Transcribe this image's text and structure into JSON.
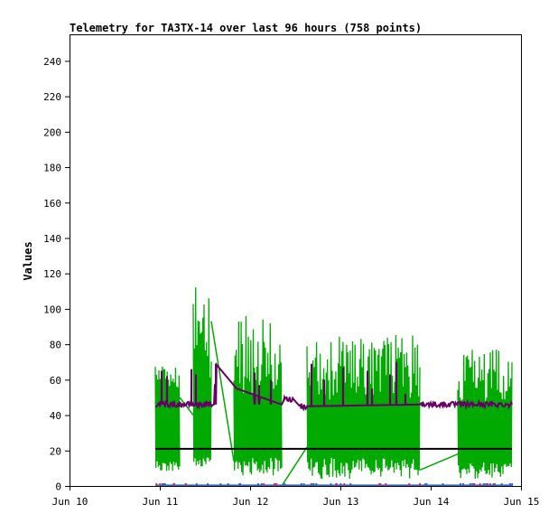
{
  "chart_data": {
    "type": "line",
    "title": "Telemetry for TA3TX-14 over last 96 hours (758 points)",
    "xlabel": "",
    "ylabel": "Values",
    "x_tick_labels": [
      "Jun 10",
      "Jun 11",
      "Jun 12",
      "Jun 13",
      "Jun 14",
      "Jun 15"
    ],
    "xlim": [
      "Jun 10",
      "Jun 15"
    ],
    "y_ticks": [
      0,
      20,
      40,
      60,
      80,
      100,
      120,
      140,
      160,
      180,
      200,
      220,
      240
    ],
    "ylim": [
      0,
      255
    ],
    "grid": false,
    "legend": "none",
    "series": [
      {
        "color": "#00aa00",
        "segments": [
          {
            "start_day": 10.95,
            "end_day": 11.22,
            "low": [
              8,
              14
            ],
            "high": [
              55,
              68
            ]
          },
          {
            "start_day": 11.37,
            "end_day": 11.57,
            "low": [
              10,
              16
            ],
            "high": [
              60,
              113
            ]
          },
          {
            "start_day": 11.82,
            "end_day": 12.35,
            "low": [
              6,
              16
            ],
            "high": [
              50,
              96
            ]
          },
          {
            "start_day": 12.63,
            "end_day": 13.88,
            "low": [
              4,
              16
            ],
            "high": [
              48,
              86
            ]
          },
          {
            "start_day": 14.3,
            "end_day": 14.9,
            "low": [
              4,
              14
            ],
            "high": [
              45,
              77
            ]
          }
        ],
        "gap_lines": [
          [
            [
              11.22,
              50
            ],
            [
              11.37,
              40
            ]
          ],
          [
            [
              11.57,
              93
            ],
            [
              11.82,
              14
            ]
          ],
          [
            [
              12.35,
              0
            ],
            [
              12.63,
              22
            ]
          ],
          [
            [
              13.88,
              9
            ],
            [
              14.3,
              18
            ]
          ]
        ]
      },
      {
        "color": "#660066",
        "baseline": 46,
        "spikes": [
          [
            11.02,
            65
          ],
          [
            11.08,
            62
          ],
          [
            11.35,
            66
          ],
          [
            11.4,
            63
          ],
          [
            11.62,
            69
          ],
          [
            12.05,
            64
          ],
          [
            12.1,
            57
          ],
          [
            12.23,
            60
          ],
          [
            12.68,
            69
          ],
          [
            12.82,
            60
          ],
          [
            13.03,
            67
          ],
          [
            13.3,
            65
          ],
          [
            13.35,
            55
          ],
          [
            13.55,
            63
          ],
          [
            13.62,
            70
          ],
          [
            13.72,
            52
          ]
        ],
        "path": [
          [
            10.95,
            46
          ],
          [
            11.6,
            46
          ],
          [
            11.62,
            69
          ],
          [
            11.85,
            55
          ],
          [
            12.35,
            46
          ],
          [
            12.38,
            49
          ],
          [
            12.48,
            49
          ],
          [
            12.55,
            45
          ],
          [
            12.63,
            45
          ],
          [
            13.9,
            46
          ],
          [
            14.3,
            46
          ],
          [
            14.9,
            46
          ]
        ]
      },
      {
        "color": "#000000",
        "values": [
          [
            10.95,
            21
          ],
          [
            14.9,
            21
          ]
        ]
      },
      {
        "color": "#3366cc",
        "values": [
          [
            10.95,
            0.3
          ],
          [
            14.9,
            0.3
          ]
        ]
      }
    ]
  }
}
